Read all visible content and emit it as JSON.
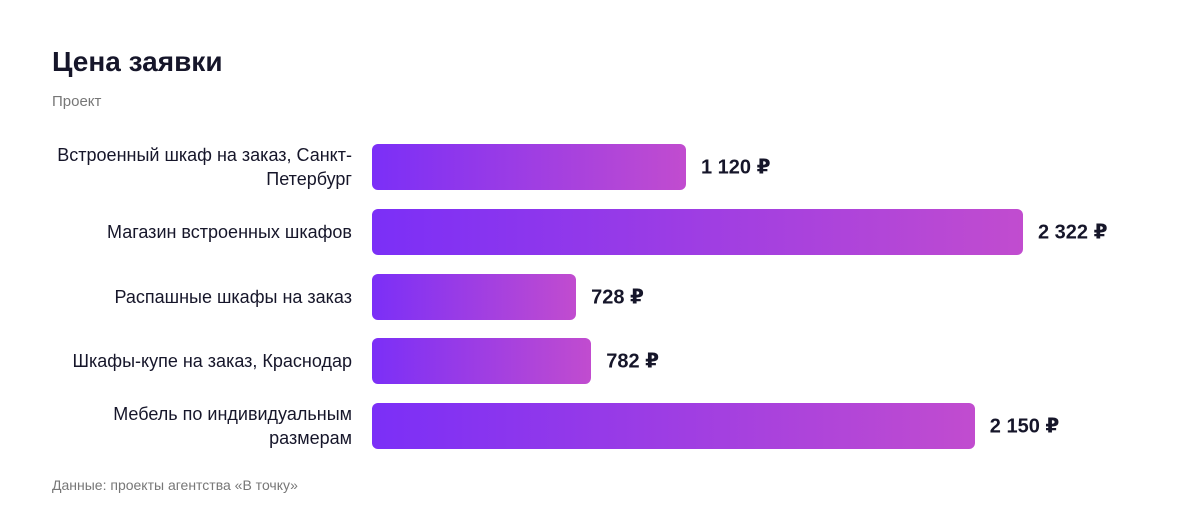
{
  "chart_data": {
    "type": "bar",
    "orientation": "horizontal",
    "title": "Цена заявки",
    "subtitle": "Проект",
    "categories": [
      "Встроенный шкаф на заказ, Санкт-Петербург",
      "Магазин встроенных шкафов",
      "Распашные шкафы на заказ",
      "Шкафы-купе на заказ, Краснодар",
      "Мебель по индивидуальным размерам"
    ],
    "values": [
      1120,
      2322,
      728,
      782,
      2150
    ],
    "value_labels": [
      "1 120 ₽",
      "2 322 ₽",
      "728 ₽",
      "782 ₽",
      "2 150 ₽"
    ],
    "color": [
      "#7b2ff7",
      "#c14ccf"
    ],
    "source": "Данные: проекты агентства «В точку»"
  }
}
